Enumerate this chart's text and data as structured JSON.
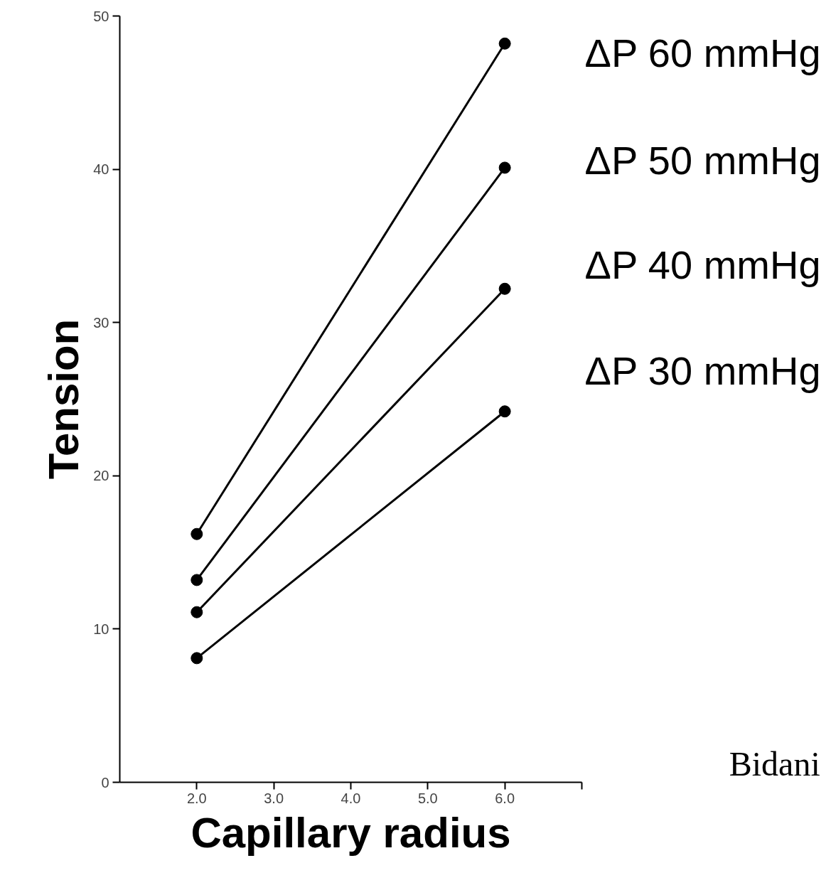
{
  "chart_data": {
    "type": "line",
    "xlabel": "Capillary radius",
    "ylabel": "Tension",
    "xlim": [
      1,
      7
    ],
    "ylim": [
      0,
      50
    ],
    "xticks": [
      {
        "value": 2,
        "label": "2.0"
      },
      {
        "value": 3,
        "label": "3.0"
      },
      {
        "value": 4,
        "label": "4.0"
      },
      {
        "value": 5,
        "label": "5.0"
      },
      {
        "value": 6,
        "label": "6.0"
      },
      {
        "value": 7,
        "label": null
      }
    ],
    "yticks": [
      0,
      10,
      20,
      30,
      40,
      50
    ],
    "x": [
      2,
      6
    ],
    "series": [
      {
        "name": "ΔP 60 mmHg",
        "color": "#000000",
        "values": [
          16.2,
          48.2
        ]
      },
      {
        "name": "ΔP 50 mmHg",
        "color": "#000000",
        "values": [
          13.2,
          40.1
        ]
      },
      {
        "name": "ΔP 40 mmHg",
        "color": "#000000",
        "values": [
          11.1,
          32.2
        ]
      },
      {
        "name": "ΔP 30 mmHg",
        "color": "#000000",
        "values": [
          8.1,
          24.2
        ]
      }
    ],
    "marker": "circle",
    "grid": false,
    "annotations": [
      "Bidani"
    ]
  }
}
